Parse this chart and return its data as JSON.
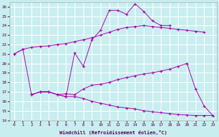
{
  "xlabel": "Windchill (Refroidissement éolien,°C)",
  "bg_color": "#c8eef0",
  "grid_color": "#ffffff",
  "line_color": "#aa00aa",
  "xlim": [
    -0.5,
    23.5
  ],
  "ylim": [
    14,
    26.5
  ],
  "xticks": [
    0,
    1,
    2,
    3,
    4,
    5,
    6,
    7,
    8,
    9,
    10,
    11,
    12,
    13,
    14,
    15,
    16,
    17,
    18,
    19,
    20,
    21,
    22,
    23
  ],
  "yticks": [
    14,
    15,
    16,
    17,
    18,
    19,
    20,
    21,
    22,
    23,
    24,
    25,
    26
  ],
  "curve1_x": [
    0,
    1,
    2,
    3,
    4,
    5,
    6,
    7,
    8,
    9,
    10,
    11,
    12,
    13,
    14,
    15,
    16,
    17,
    18,
    19,
    20,
    21,
    22
  ],
  "curve1_y": [
    21.0,
    21.5,
    21.7,
    21.8,
    21.85,
    22.0,
    22.1,
    22.3,
    22.5,
    22.7,
    23.0,
    23.3,
    23.6,
    23.8,
    23.9,
    24.0,
    23.9,
    23.8,
    23.7,
    23.6,
    23.5,
    23.4,
    23.3
  ],
  "curve2_x": [
    0,
    1,
    2,
    3,
    4,
    5,
    6,
    7,
    8,
    9,
    10,
    11,
    12,
    13,
    14,
    15,
    16,
    17,
    18
  ],
  "curve2_y": [
    21.0,
    21.5,
    16.7,
    17.0,
    17.0,
    16.7,
    16.5,
    21.1,
    19.7,
    22.5,
    23.5,
    25.6,
    25.6,
    25.2,
    26.3,
    25.5,
    24.5,
    24.0,
    24.0
  ],
  "curve3_x": [
    2,
    3,
    4,
    5,
    6,
    7,
    8,
    9,
    10,
    11,
    12,
    13,
    14,
    15,
    16,
    17,
    18,
    19,
    20
  ],
  "curve3_y": [
    16.7,
    17.0,
    17.0,
    16.7,
    16.8,
    16.7,
    17.3,
    17.7,
    17.8,
    18.0,
    18.3,
    18.5,
    18.7,
    18.9,
    19.0,
    19.2,
    19.4,
    19.7,
    20.0
  ],
  "curve4_x": [
    2,
    3,
    4,
    5,
    6,
    7,
    8,
    9,
    10,
    11,
    12,
    13,
    14,
    15,
    16,
    17,
    18,
    19,
    20,
    21,
    22,
    23
  ],
  "curve4_y": [
    16.7,
    17.0,
    17.0,
    16.7,
    16.5,
    16.5,
    16.3,
    16.0,
    15.8,
    15.6,
    15.4,
    15.3,
    15.2,
    15.0,
    14.9,
    14.8,
    14.7,
    14.6,
    14.55,
    14.5,
    14.5,
    14.5
  ],
  "curve5_x": [
    20,
    21,
    22,
    23
  ],
  "curve5_y": [
    20.0,
    17.3,
    15.5,
    14.5
  ]
}
